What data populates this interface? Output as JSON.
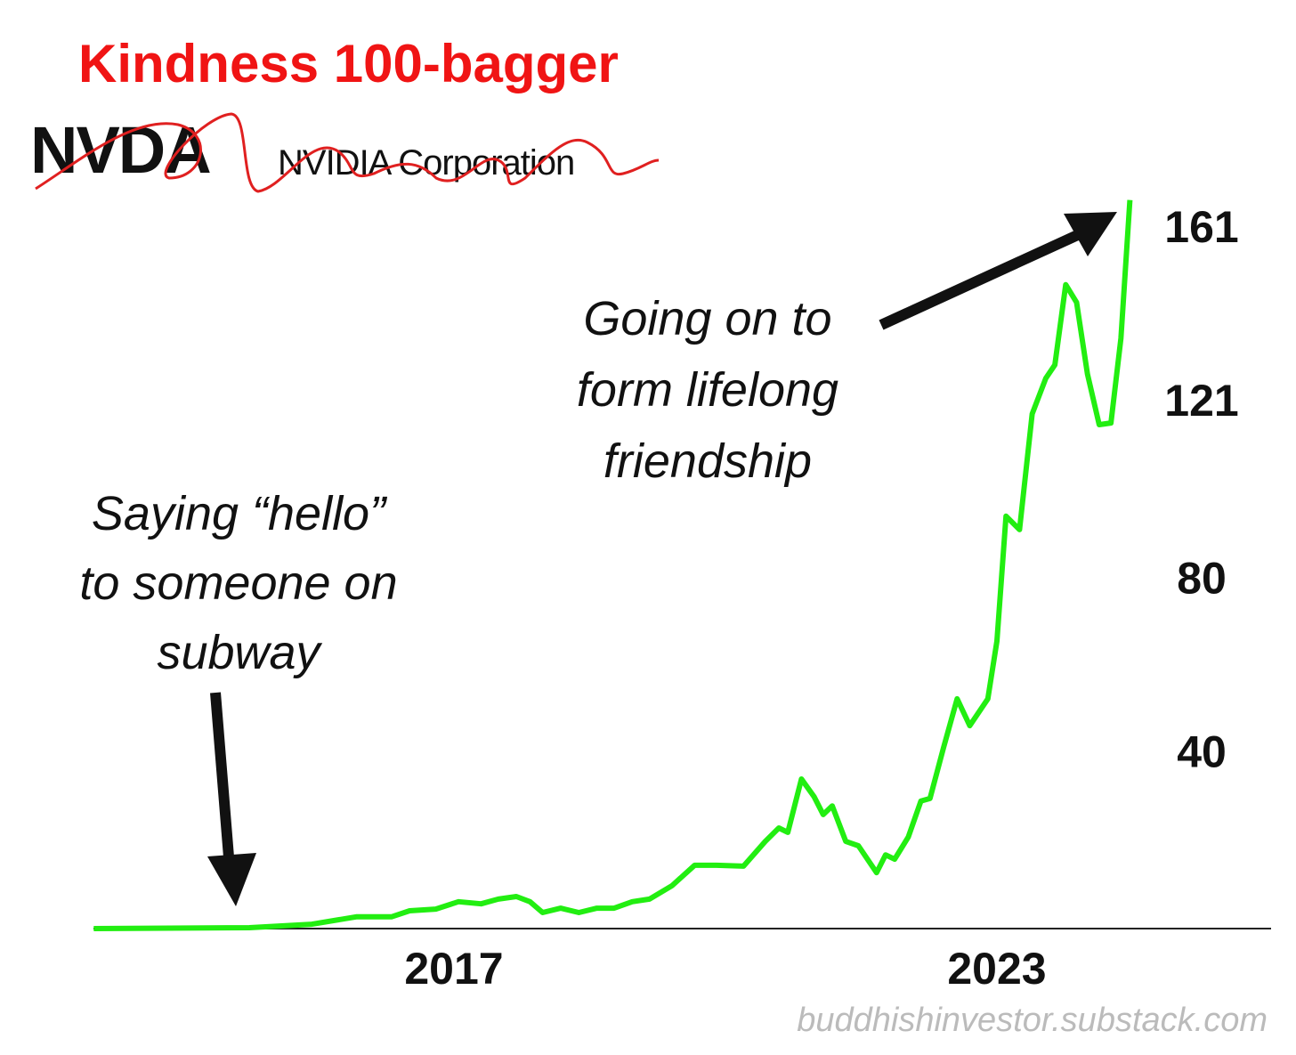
{
  "chart_data": {
    "type": "line",
    "title": "Kindness 100-bagger",
    "ticker": "NVDA",
    "company": "NVIDIA Corporation",
    "annotations": [
      [
        "Going on to",
        "form lifelong",
        "friendship"
      ],
      [
        "Saying “hello”",
        "to someone on",
        "subway"
      ]
    ],
    "source": "buddhishinvestor.substack.com",
    "color": "#22ee11",
    "x": [
      2013.02,
      2014.74,
      2015.43,
      2015.92,
      2016.31,
      2016.51,
      2016.8,
      2017.05,
      2017.3,
      2017.49,
      2017.69,
      2017.84,
      2017.98,
      2018.18,
      2018.38,
      2018.58,
      2018.77,
      2018.97,
      2019.16,
      2019.41,
      2019.66,
      2019.9,
      2020.2,
      2020.44,
      2020.59,
      2020.69,
      2020.84,
      2020.98,
      2021.08,
      2021.18,
      2021.33,
      2021.47,
      2021.67,
      2021.77,
      2021.87,
      2022.02,
      2022.16,
      2022.26,
      2022.41,
      2022.56,
      2022.7,
      2022.9,
      2023.0,
      2023.1,
      2023.25,
      2023.39,
      2023.54,
      2023.64,
      2023.76,
      2023.88,
      2024.0,
      2024.13,
      2024.26,
      2024.37,
      2024.47
    ],
    "values": [
      0,
      0.2,
      1.0,
      2.7,
      2.7,
      4.1,
      4.5,
      6.2,
      5.7,
      6.8,
      7.4,
      6.2,
      3.7,
      4.7,
      3.7,
      4.7,
      4.7,
      6.2,
      6.8,
      9.9,
      14.6,
      14.6,
      14.4,
      20.1,
      23.2,
      22.2,
      34.5,
      30.4,
      26.3,
      28.3,
      20.1,
      19.1,
      12.9,
      17.0,
      16.0,
      21.1,
      29.4,
      30.0,
      41.7,
      53.0,
      46.8,
      53.0,
      66.3,
      95.1,
      92.0,
      118.7,
      126.9,
      130.0,
      148.5,
      144.4,
      127.9,
      116.2,
      116.6,
      136.1,
      168
    ],
    "xlim": [
      2013,
      2026
    ],
    "xticks": [
      2017,
      2023
    ],
    "ylim": [
      0,
      170
    ],
    "yticks": [
      40,
      80,
      121,
      161
    ]
  }
}
